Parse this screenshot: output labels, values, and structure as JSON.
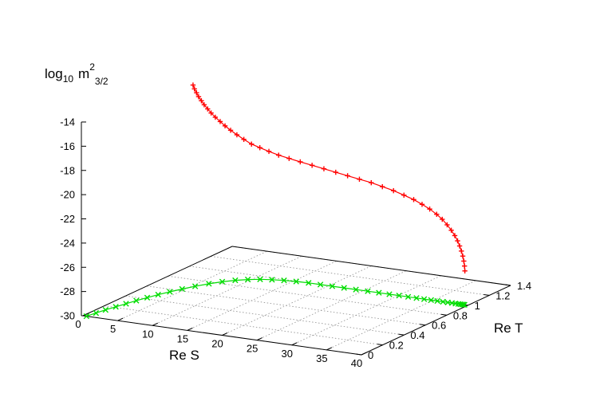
{
  "chart_data": {
    "type": "line3d",
    "zlabel": {
      "base": "log",
      "sub": "10",
      "var": "m",
      "var_sup": "2",
      "var_sub": "3/2"
    },
    "xlabel": "Re S",
    "ylabel": "Re T",
    "xlim": [
      0,
      40
    ],
    "ylim": [
      0,
      1.4
    ],
    "zlim": [
      -30,
      -14
    ],
    "x_ticks": [
      "0",
      "5",
      "10",
      "15",
      "20",
      "25",
      "30",
      "35",
      "40"
    ],
    "y_ticks": [
      "0",
      "0.2",
      "0.4",
      "0.6",
      "0.8",
      "1",
      "1.2",
      "1.4"
    ],
    "z_ticks": [
      "-14",
      "-16",
      "-18",
      "-20",
      "-22",
      "-24",
      "-26",
      "-28",
      "-30"
    ],
    "grid": true,
    "series": [
      {
        "marker": "+",
        "color": "#ff0000",
        "points": [
          [
            0.5,
            1.0,
            -15.0
          ],
          [
            0.7,
            1.0,
            -15.3
          ],
          [
            1.0,
            1.0,
            -15.6
          ],
          [
            1.3,
            1.0,
            -15.9
          ],
          [
            1.7,
            1.0,
            -16.2
          ],
          [
            2.1,
            1.0,
            -16.5
          ],
          [
            2.6,
            1.0,
            -16.8
          ],
          [
            3.1,
            1.0,
            -17.1
          ],
          [
            3.7,
            1.0,
            -17.4
          ],
          [
            4.4,
            1.0,
            -17.7
          ],
          [
            5.1,
            1.0,
            -18.0
          ],
          [
            5.9,
            1.0,
            -18.3
          ],
          [
            6.8,
            1.0,
            -18.6
          ],
          [
            7.8,
            1.0,
            -18.9
          ],
          [
            8.9,
            1.0,
            -19.2
          ],
          [
            10.1,
            1.0,
            -19.4
          ],
          [
            11.4,
            1.0,
            -19.6
          ],
          [
            12.8,
            1.0,
            -19.8
          ],
          [
            14.3,
            1.0,
            -19.95
          ],
          [
            15.9,
            1.0,
            -20.1
          ],
          [
            17.6,
            1.0,
            -20.25
          ],
          [
            19.3,
            1.0,
            -20.4
          ],
          [
            21.0,
            1.0,
            -20.55
          ],
          [
            22.7,
            1.0,
            -20.7
          ],
          [
            24.4,
            1.0,
            -20.85
          ],
          [
            26.1,
            1.0,
            -21.0
          ],
          [
            27.7,
            1.0,
            -21.2
          ],
          [
            29.3,
            1.0,
            -21.4
          ],
          [
            30.8,
            1.0,
            -21.65
          ],
          [
            32.2,
            1.0,
            -21.9
          ],
          [
            33.4,
            1.0,
            -22.2
          ],
          [
            34.5,
            1.0,
            -22.5
          ],
          [
            35.5,
            1.0,
            -22.85
          ],
          [
            36.3,
            1.0,
            -23.2
          ],
          [
            37.0,
            1.0,
            -23.6
          ],
          [
            37.6,
            1.0,
            -24.0
          ],
          [
            38.1,
            1.0,
            -24.4
          ],
          [
            38.5,
            1.0,
            -24.8
          ],
          [
            38.8,
            1.0,
            -25.2
          ],
          [
            39.05,
            1.0,
            -25.6
          ],
          [
            39.25,
            1.0,
            -26.0
          ],
          [
            39.4,
            1.0,
            -26.4
          ],
          [
            39.5,
            1.0,
            -26.8
          ],
          [
            39.55,
            1.0,
            -27.2
          ]
        ]
      },
      {
        "marker": "x",
        "color": "#00dd00",
        "points": [
          [
            0.5,
            0.0,
            -30.0
          ],
          [
            0.8,
            0.07,
            -30.0
          ],
          [
            1.1,
            0.14,
            -30.0
          ],
          [
            1.5,
            0.21,
            -30.0
          ],
          [
            1.9,
            0.28,
            -30.0
          ],
          [
            2.3,
            0.35,
            -30.0
          ],
          [
            2.8,
            0.42,
            -30.0
          ],
          [
            3.3,
            0.49,
            -30.0
          ],
          [
            3.9,
            0.56,
            -30.0
          ],
          [
            4.6,
            0.63,
            -30.0
          ],
          [
            5.4,
            0.7,
            -30.0
          ],
          [
            6.3,
            0.77,
            -30.0
          ],
          [
            7.3,
            0.83,
            -30.0
          ],
          [
            8.4,
            0.88,
            -30.0
          ],
          [
            9.6,
            0.92,
            -30.0
          ],
          [
            10.9,
            0.95,
            -30.0
          ],
          [
            12.3,
            0.97,
            -30.0
          ],
          [
            13.8,
            0.985,
            -30.0
          ],
          [
            15.4,
            0.995,
            -30.0
          ],
          [
            17.1,
            1.0,
            -30.0
          ],
          [
            18.8,
            1.0,
            -30.0
          ],
          [
            20.5,
            1.0,
            -30.0
          ],
          [
            22.2,
            1.0,
            -30.0
          ],
          [
            23.9,
            1.0,
            -30.0
          ],
          [
            25.6,
            1.0,
            -30.0
          ],
          [
            27.2,
            1.0,
            -30.0
          ],
          [
            28.7,
            1.0,
            -30.0
          ],
          [
            30.1,
            1.0,
            -30.0
          ],
          [
            31.4,
            1.0,
            -30.0
          ],
          [
            32.6,
            1.0,
            -30.0
          ],
          [
            33.7,
            1.0,
            -30.0
          ],
          [
            34.7,
            1.0,
            -30.0
          ],
          [
            35.6,
            1.0,
            -30.0
          ],
          [
            36.4,
            1.0,
            -30.0
          ],
          [
            37.1,
            1.0,
            -30.0
          ],
          [
            37.7,
            1.0,
            -30.0
          ],
          [
            38.2,
            1.0,
            -30.0
          ],
          [
            38.6,
            1.0,
            -30.0
          ],
          [
            38.9,
            1.0,
            -30.0
          ],
          [
            39.15,
            1.0,
            -30.0
          ],
          [
            39.35,
            1.0,
            -30.0
          ],
          [
            39.5,
            1.0,
            -30.0
          ]
        ]
      }
    ]
  }
}
